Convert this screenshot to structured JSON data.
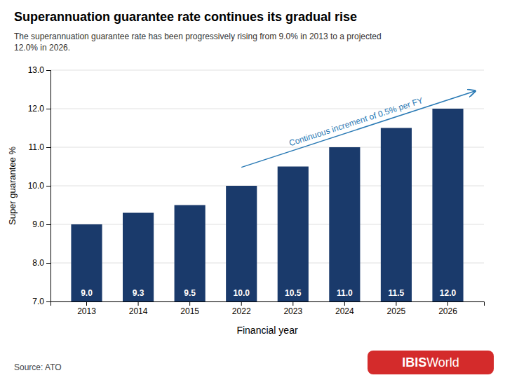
{
  "chart_data": {
    "type": "bar",
    "title": "Superannuation guarantee rate continues its gradual rise",
    "subtitle": "The superannuation guarantee rate has been progressively rising from 9.0% in 2013 to a projected\n12.0% in 2026.",
    "categories": [
      "2013",
      "2014",
      "2015",
      "2022",
      "2023",
      "2024",
      "2025",
      "2026"
    ],
    "values": [
      9.0,
      9.3,
      9.5,
      10.0,
      10.5,
      11.0,
      11.5,
      12.0
    ],
    "value_labels": [
      "9.0",
      "9.3",
      "9.5",
      "10.0",
      "10.5",
      "11.0",
      "11.5",
      "12.0"
    ],
    "data_labels": true,
    "color": "#1a3a6b",
    "ylim": [
      7.0,
      13.0
    ],
    "yticks": [
      {
        "value": 7.0,
        "label": "7.0"
      },
      {
        "value": 8.0,
        "label": "8.0"
      },
      {
        "value": 9.0,
        "label": "9.0"
      },
      {
        "value": 10.0,
        "label": "10.0"
      },
      {
        "value": 11.0,
        "label": "11.0"
      },
      {
        "value": 12.0,
        "label": "12.0"
      },
      {
        "value": 13.0,
        "label": "13.0"
      }
    ],
    "grid": true,
    "xlabel": "Financial year",
    "ylabel": "Super guarantee %",
    "source": "Source: ATO",
    "annotations": [
      {
        "text": "Continuous increment of 0.5% per FY",
        "color": "#2a7ab5"
      }
    ],
    "logo": {
      "text": [
        "IBIS",
        "World"
      ],
      "color": "#d42b2b"
    }
  }
}
